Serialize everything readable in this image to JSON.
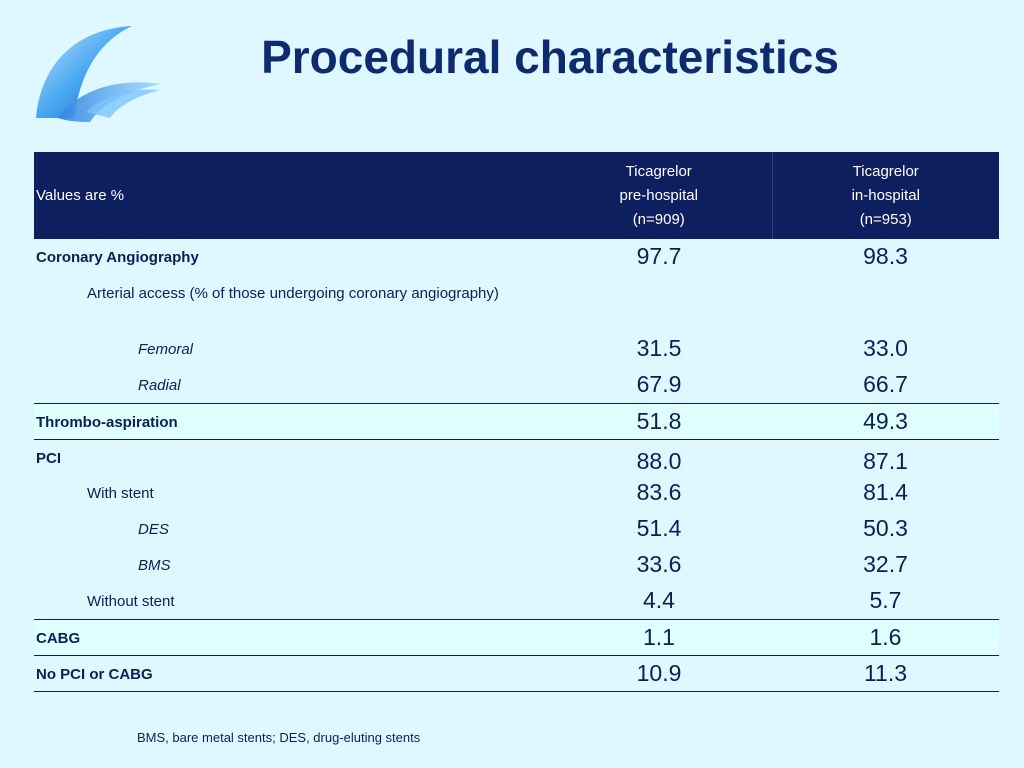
{
  "slide": {
    "title": "Procedural characteristics",
    "footnote": "BMS, bare metal stents; DES, drug-eluting stents"
  },
  "colors": {
    "header_bg": "#0d1f5e",
    "highlight_row": "#dfffff",
    "page_bg": "#dff8ff"
  },
  "logo": {
    "icon": "wave-logo-icon"
  },
  "table": {
    "header": {
      "label": "Values are %",
      "col1": [
        "Ticagrelor",
        "pre-hospital",
        "(n=909)"
      ],
      "col2": [
        "Ticagrelor",
        "in-hospital",
        "(n=953)"
      ]
    },
    "rows": [
      {
        "label": "Coronary Angiography",
        "v1": "97.7",
        "v2": "98.3"
      },
      {
        "label": "Arterial access (% of those undergoing coronary angiography)",
        "v1": "",
        "v2": ""
      },
      {
        "label": "Femoral",
        "v1": "31.5",
        "v2": "33.0"
      },
      {
        "label": "Radial",
        "v1": "67.9",
        "v2": "66.7"
      },
      {
        "label": "Thrombo-aspiration",
        "v1": "51.8",
        "v2": "49.3"
      },
      {
        "label": "PCI",
        "v1": "88.0",
        "v2": "87.1"
      },
      {
        "label": "With stent",
        "v1": "83.6",
        "v2": "81.4"
      },
      {
        "label": "DES",
        "v1": "51.4",
        "v2": "50.3"
      },
      {
        "label": "BMS",
        "v1": "33.6",
        "v2": "32.7"
      },
      {
        "label": "Without stent",
        "v1": "4.4",
        "v2": "5.7"
      },
      {
        "label": "CABG",
        "v1": "1.1",
        "v2": "1.6"
      },
      {
        "label": "No PCI or CABG",
        "v1": "10.9",
        "v2": "11.3"
      }
    ]
  }
}
